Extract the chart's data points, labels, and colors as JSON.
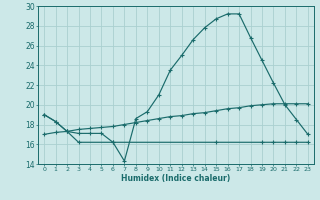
{
  "xlabel": "Humidex (Indice chaleur)",
  "xlim": [
    -0.5,
    23.5
  ],
  "ylim": [
    14,
    30
  ],
  "yticks": [
    14,
    16,
    18,
    20,
    22,
    24,
    26,
    28,
    30
  ],
  "xticks": [
    0,
    1,
    2,
    3,
    4,
    5,
    6,
    7,
    8,
    9,
    10,
    11,
    12,
    13,
    14,
    15,
    16,
    17,
    18,
    19,
    20,
    21,
    22,
    23
  ],
  "bg_color": "#cce8e8",
  "grid_color": "#aad0d0",
  "line_color": "#1a6b6b",
  "series1_x": [
    0,
    1,
    2,
    3,
    4,
    5,
    6,
    7,
    8,
    9,
    10,
    11,
    12,
    13,
    14,
    15,
    16,
    17,
    18,
    19,
    20,
    21,
    22,
    23
  ],
  "series1_y": [
    19.0,
    18.3,
    17.3,
    17.1,
    17.1,
    17.1,
    16.2,
    14.3,
    18.6,
    19.3,
    21.0,
    23.5,
    25.0,
    26.6,
    27.8,
    28.7,
    29.2,
    29.2,
    26.8,
    24.5,
    22.2,
    20.0,
    18.5,
    17.0
  ],
  "series2_x": [
    0,
    1,
    2,
    3,
    4,
    5,
    6,
    7,
    8,
    9,
    10,
    11,
    12,
    13,
    14,
    15,
    16,
    17,
    18,
    19,
    20,
    21,
    22,
    23
  ],
  "series2_y": [
    17.0,
    17.2,
    17.3,
    17.5,
    17.6,
    17.7,
    17.8,
    18.0,
    18.2,
    18.4,
    18.6,
    18.8,
    18.9,
    19.1,
    19.2,
    19.4,
    19.6,
    19.7,
    19.9,
    20.0,
    20.1,
    20.1,
    20.1,
    20.1
  ],
  "series3_x": [
    0,
    1,
    2,
    3,
    6,
    15,
    19,
    20,
    21,
    22,
    23
  ],
  "series3_y": [
    19.0,
    18.3,
    17.3,
    16.2,
    16.2,
    16.2,
    16.2,
    16.2,
    16.2,
    16.2,
    16.2
  ]
}
